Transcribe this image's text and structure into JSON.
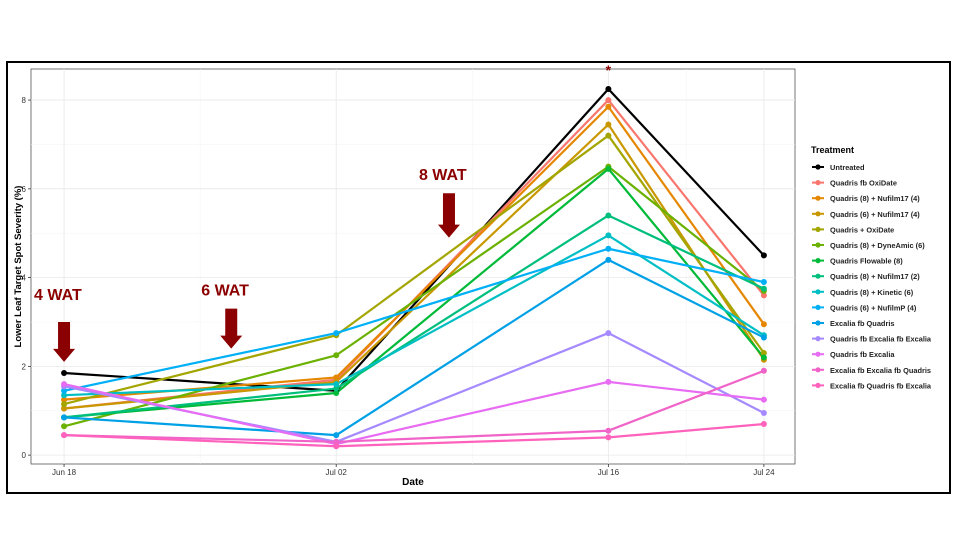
{
  "chart_data": {
    "type": "line",
    "xlabel": "Date",
    "ylabel": "Lower Leaf Target Spot Severity (%)",
    "x": [
      "Jun 18",
      "Jul 02",
      "Jul 16",
      "Jul 24"
    ],
    "x_days": [
      0,
      14,
      28,
      36
    ],
    "ylim": [
      -0.2,
      8.7
    ],
    "yticks": [
      0,
      2,
      4,
      6,
      8
    ],
    "grid": true,
    "legend_title": "Treatment",
    "legend_position": "right",
    "annotations": [
      {
        "text": "4 WAT",
        "x_day": 0,
        "y": 3.5,
        "arrow_top": 3.0,
        "arrow_bottom": 2.1
      },
      {
        "text": "6 WAT",
        "x_day": 8.6,
        "y": 3.6,
        "arrow_top": 3.3,
        "arrow_bottom": 2.4
      },
      {
        "text": "8 WAT",
        "x_day": 19.8,
        "y": 6.2,
        "arrow_top": 5.9,
        "arrow_bottom": 4.9
      },
      {
        "text": "*",
        "x_day": 28,
        "y": 8.65
      }
    ],
    "annotation_color": "#8b0000",
    "series": [
      {
        "name": "Untreated",
        "color": "#000000",
        "values": [
          1.85,
          1.45,
          8.25,
          4.5
        ]
      },
      {
        "name": "Quadris fb OxiDate",
        "color": "#f8766d",
        "values": [
          1.05,
          1.7,
          8.0,
          3.6
        ]
      },
      {
        "name": "Quadris (8) + Nufilm17 (4)",
        "color": "#e58700",
        "values": [
          1.25,
          1.75,
          7.85,
          2.95
        ]
      },
      {
        "name": "Quadris (6) + Nufilm17 (4)",
        "color": "#c99800",
        "values": [
          1.05,
          1.65,
          7.45,
          2.15
        ]
      },
      {
        "name": "Quadris + OxiDate",
        "color": "#a3a500",
        "values": [
          1.15,
          2.7,
          7.2,
          2.3
        ]
      },
      {
        "name": "Quadris (8) + DyneAmic (6)",
        "color": "#6bb100",
        "values": [
          0.65,
          2.25,
          6.5,
          3.7
        ]
      },
      {
        "name": "Quadris Flowable (8)",
        "color": "#00ba38",
        "values": [
          0.85,
          1.4,
          6.45,
          2.2
        ]
      },
      {
        "name": "Quadris (8) + Nufilm17 (2)",
        "color": "#00bf7d",
        "values": [
          0.85,
          1.5,
          5.4,
          3.75
        ]
      },
      {
        "name": "Quadris (8) + Kinetic (6)",
        "color": "#00bfc4",
        "values": [
          1.35,
          1.6,
          4.95,
          2.7
        ]
      },
      {
        "name": "Quadris (6) + NufilmP (4)",
        "color": "#00b0f6",
        "values": [
          1.45,
          2.75,
          4.65,
          3.9
        ]
      },
      {
        "name": "Excalia fb Quadris",
        "color": "#00a0e6",
        "values": [
          0.85,
          0.45,
          4.4,
          2.65
        ]
      },
      {
        "name": "Quadris fb Excalia fb Excalia",
        "color": "#a58aff",
        "values": [
          1.55,
          0.3,
          2.75,
          0.95
        ]
      },
      {
        "name": "Quadris fb Excalia",
        "color": "#e76bf3",
        "values": [
          1.6,
          0.25,
          1.65,
          1.25
        ]
      },
      {
        "name": "Excalia fb Excalia fb Quadris",
        "color": "#f063c8",
        "values": [
          0.45,
          0.3,
          0.55,
          1.9
        ]
      },
      {
        "name": "Excalia fb Quadris fb Excalia",
        "color": "#ff62bc",
        "values": [
          0.45,
          0.2,
          0.4,
          0.7
        ]
      }
    ]
  }
}
